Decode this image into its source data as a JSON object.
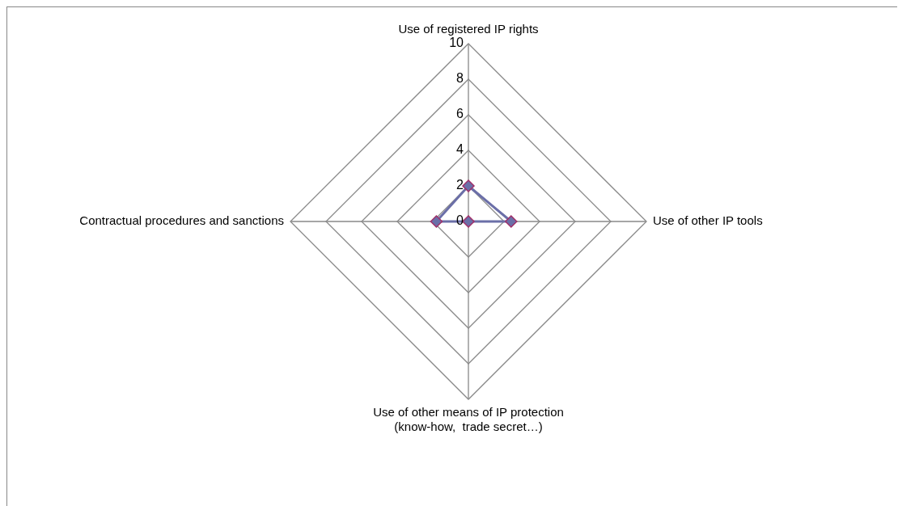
{
  "chart_data": {
    "type": "radar",
    "categories": [
      "Use of registered IP rights",
      "Use of other IP tools",
      "Use of other means of IP protection\n(know-how,  trade secret…)",
      "Contractual procedures and sanctions"
    ],
    "series": [
      {
        "color": "#6b6fa8",
        "values": [
          2,
          2.4,
          0,
          1.8
        ]
      }
    ],
    "ylim": [
      0,
      10
    ],
    "yticks": [
      0,
      2,
      4,
      6,
      8,
      10
    ],
    "grid": true,
    "legend": false,
    "marker": "diamond",
    "line_style": "solid"
  }
}
